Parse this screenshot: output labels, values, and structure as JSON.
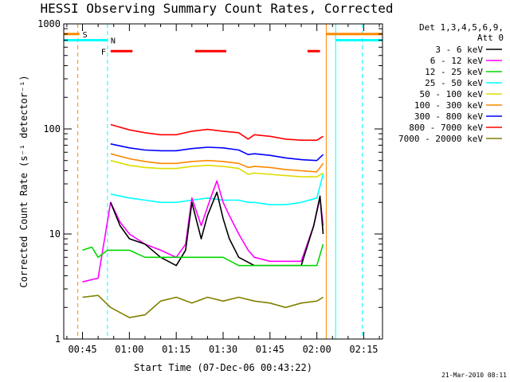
{
  "chart_data": {
    "type": "line",
    "title": "HESSI Observing Summary Count Rates, Corrected",
    "xlabel": "Start Time (07-Dec-06 00:43:22)",
    "ylabel": "Corrected Count Rate (s⁻¹ detector⁻¹)",
    "yscale": "log",
    "ylim": [
      1,
      1000
    ],
    "xlim_minutes": [
      -6,
      96
    ],
    "x_ticks": [
      {
        "minute": 0,
        "label": "00:45"
      },
      {
        "minute": 15,
        "label": "01:00"
      },
      {
        "minute": 30,
        "label": "01:15"
      },
      {
        "minute": 45,
        "label": "01:30"
      },
      {
        "minute": 60,
        "label": "01:45"
      },
      {
        "minute": 75,
        "label": "02:00"
      },
      {
        "minute": 90,
        "label": "02:15"
      }
    ],
    "y_ticks": [
      {
        "value": 1,
        "label": "1"
      },
      {
        "value": 10,
        "label": "10"
      },
      {
        "value": 100,
        "label": "100"
      },
      {
        "value": 1000,
        "label": "1000"
      }
    ],
    "legend": {
      "header": [
        "Det 1,3,4,5,6,9,",
        "Att 0"
      ],
      "position": "right",
      "entries": [
        {
          "label": "3 - 6 keV",
          "color": "#000000"
        },
        {
          "label": "6 - 12 keV",
          "color": "#ff00ff"
        },
        {
          "label": "12 - 25 keV",
          "color": "#00d800"
        },
        {
          "label": "25 - 50 keV",
          "color": "#00ffff"
        },
        {
          "label": "50 - 100 keV",
          "color": "#dddd00"
        },
        {
          "label": "100 - 300 keV",
          "color": "#ff8800"
        },
        {
          "label": "300 - 800 keV",
          "color": "#0000ff"
        },
        {
          "label": "800 - 7000 keV",
          "color": "#ff0000"
        },
        {
          "label": "7000 - 20000 keV",
          "color": "#808000"
        }
      ]
    },
    "series": [
      {
        "name": "800 - 7000 keV",
        "color": "#ff0000",
        "points": [
          [
            9,
            110
          ],
          [
            15,
            98
          ],
          [
            20,
            92
          ],
          [
            25,
            88
          ],
          [
            30,
            88
          ],
          [
            35,
            95
          ],
          [
            40,
            99
          ],
          [
            45,
            95
          ],
          [
            50,
            92
          ],
          [
            53,
            80
          ],
          [
            55,
            88
          ],
          [
            60,
            85
          ],
          [
            65,
            80
          ],
          [
            70,
            78
          ],
          [
            75,
            78
          ],
          [
            77,
            85
          ]
        ]
      },
      {
        "name": "300 - 800 keV",
        "color": "#0000ff",
        "points": [
          [
            9,
            72
          ],
          [
            15,
            66
          ],
          [
            20,
            63
          ],
          [
            25,
            62
          ],
          [
            30,
            62
          ],
          [
            35,
            65
          ],
          [
            40,
            67
          ],
          [
            45,
            66
          ],
          [
            50,
            63
          ],
          [
            53,
            57
          ],
          [
            55,
            58
          ],
          [
            60,
            56
          ],
          [
            65,
            53
          ],
          [
            70,
            51
          ],
          [
            75,
            50
          ],
          [
            77,
            57
          ]
        ]
      },
      {
        "name": "100 - 300 keV",
        "color": "#ff8800",
        "points": [
          [
            9,
            58
          ],
          [
            15,
            52
          ],
          [
            20,
            49
          ],
          [
            25,
            47
          ],
          [
            30,
            47
          ],
          [
            35,
            49
          ],
          [
            40,
            50
          ],
          [
            45,
            49
          ],
          [
            50,
            47
          ],
          [
            53,
            43
          ],
          [
            55,
            44
          ],
          [
            60,
            43
          ],
          [
            65,
            41
          ],
          [
            70,
            40
          ],
          [
            75,
            39
          ],
          [
            77,
            47
          ]
        ]
      },
      {
        "name": "50 - 100 keV",
        "color": "#dddd00",
        "points": [
          [
            9,
            50
          ],
          [
            15,
            45
          ],
          [
            20,
            43
          ],
          [
            25,
            42
          ],
          [
            30,
            42
          ],
          [
            35,
            44
          ],
          [
            40,
            45
          ],
          [
            45,
            44
          ],
          [
            50,
            42
          ],
          [
            53,
            37
          ],
          [
            55,
            38
          ],
          [
            60,
            37
          ],
          [
            65,
            36
          ],
          [
            70,
            35
          ],
          [
            75,
            35
          ],
          [
            77,
            38
          ]
        ]
      },
      {
        "name": "25 - 50 keV",
        "color": "#00ffff",
        "points": [
          [
            9,
            24
          ],
          [
            15,
            22
          ],
          [
            20,
            21
          ],
          [
            25,
            20
          ],
          [
            30,
            20
          ],
          [
            35,
            21
          ],
          [
            40,
            22
          ],
          [
            45,
            21
          ],
          [
            50,
            21
          ],
          [
            53,
            20
          ],
          [
            55,
            20
          ],
          [
            60,
            19
          ],
          [
            65,
            19
          ],
          [
            70,
            20
          ],
          [
            75,
            22
          ],
          [
            77,
            37
          ]
        ]
      },
      {
        "name": "6 - 12 keV",
        "color": "#ff00ff",
        "points": [
          [
            0,
            3.5
          ],
          [
            5,
            3.8
          ],
          [
            9,
            20
          ],
          [
            12,
            13
          ],
          [
            15,
            10
          ],
          [
            20,
            8
          ],
          [
            25,
            7
          ],
          [
            30,
            6
          ],
          [
            33,
            8
          ],
          [
            35,
            22
          ],
          [
            38,
            12
          ],
          [
            41,
            22
          ],
          [
            43,
            32
          ],
          [
            45,
            20
          ],
          [
            47,
            15
          ],
          [
            50,
            10
          ],
          [
            53,
            7
          ],
          [
            55,
            6
          ],
          [
            60,
            5.5
          ],
          [
            65,
            5.5
          ],
          [
            70,
            5.5
          ],
          [
            74,
            12
          ],
          [
            76,
            22
          ],
          [
            77,
            12
          ]
        ]
      },
      {
        "name": "3 - 6 keV",
        "color": "#000000",
        "points": [
          [
            9,
            20
          ],
          [
            12,
            12
          ],
          [
            15,
            9
          ],
          [
            20,
            8
          ],
          [
            25,
            6
          ],
          [
            30,
            5
          ],
          [
            33,
            7
          ],
          [
            35,
            20
          ],
          [
            38,
            9
          ],
          [
            40,
            15
          ],
          [
            43,
            25
          ],
          [
            45,
            14
          ],
          [
            47,
            9
          ],
          [
            50,
            6
          ],
          [
            55,
            5
          ],
          [
            60,
            5
          ],
          [
            65,
            5
          ],
          [
            70,
            5
          ],
          [
            74,
            12
          ],
          [
            76,
            23
          ],
          [
            77,
            10
          ]
        ]
      },
      {
        "name": "12 - 25 keV",
        "color": "#00d800",
        "points": [
          [
            0,
            7
          ],
          [
            3,
            7.5
          ],
          [
            5,
            6
          ],
          [
            8,
            7
          ],
          [
            15,
            7
          ],
          [
            20,
            6
          ],
          [
            25,
            6
          ],
          [
            30,
            6
          ],
          [
            35,
            6
          ],
          [
            40,
            6
          ],
          [
            45,
            6
          ],
          [
            50,
            5
          ],
          [
            55,
            5
          ],
          [
            60,
            5
          ],
          [
            65,
            5
          ],
          [
            70,
            5
          ],
          [
            75,
            5
          ],
          [
            77,
            8
          ]
        ]
      },
      {
        "name": "7000 - 20000 keV",
        "color": "#808000",
        "points": [
          [
            0,
            2.5
          ],
          [
            5,
            2.6
          ],
          [
            9,
            2
          ],
          [
            15,
            1.6
          ],
          [
            20,
            1.7
          ],
          [
            25,
            2.3
          ],
          [
            30,
            2.5
          ],
          [
            35,
            2.2
          ],
          [
            40,
            2.5
          ],
          [
            45,
            2.3
          ],
          [
            50,
            2.5
          ],
          [
            55,
            2.3
          ],
          [
            60,
            2.2
          ],
          [
            65,
            2
          ],
          [
            70,
            2.2
          ],
          [
            75,
            2.3
          ],
          [
            77,
            2.5
          ]
        ]
      }
    ],
    "flag_rows": [
      {
        "label": "S",
        "color": "#ff8800",
        "value": 800,
        "segments": [
          [
            -6,
            -1
          ],
          [
            78,
            96
          ]
        ]
      },
      {
        "label": "N",
        "color": "#00ffff",
        "value": 700,
        "segments": [
          [
            -6,
            8
          ],
          [
            81,
            96
          ]
        ]
      },
      {
        "label": "F",
        "color": "#ff0000",
        "value": 550,
        "segments": [
          [
            9,
            16
          ],
          [
            36,
            46
          ],
          [
            72,
            76
          ]
        ]
      }
    ],
    "vertical_markers": [
      {
        "minute": -1.5,
        "color": "#ff8800",
        "style": "dashed"
      },
      {
        "minute": 8,
        "color": "#00ffff",
        "style": "dashed"
      },
      {
        "minute": 78,
        "color": "#ff8800",
        "style": "solid"
      },
      {
        "minute": 81,
        "color": "#00ffff",
        "style": "solid"
      },
      {
        "minute": 89.5,
        "color": "#ff8800",
        "style": "dashed"
      },
      {
        "minute": 89.5,
        "color": "#00ffff",
        "style": "dashed"
      }
    ]
  },
  "footer_stamp": "21-Mar-2010 08:11"
}
